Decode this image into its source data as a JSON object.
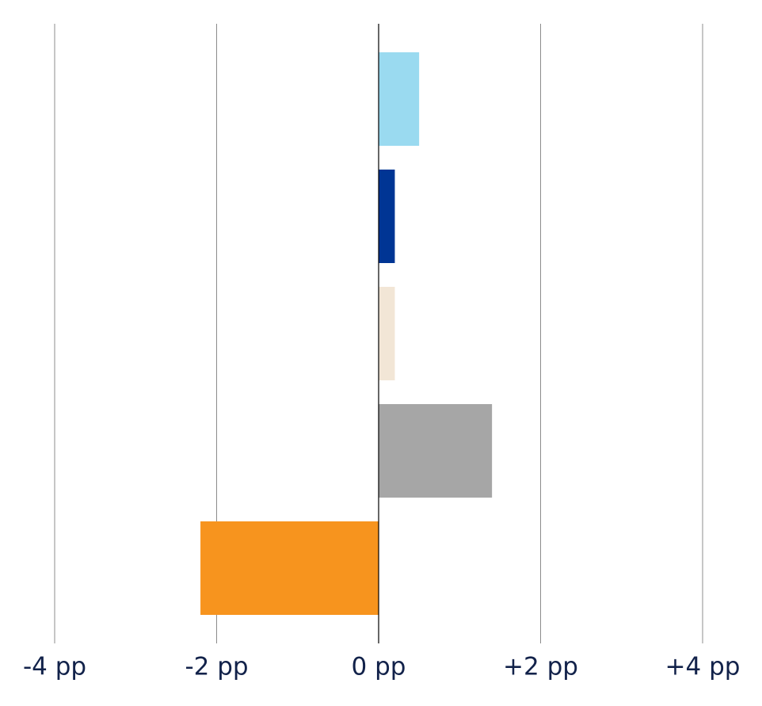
{
  "chart_data": {
    "type": "hbar",
    "categories": [
      null,
      null,
      null,
      null,
      null
    ],
    "values": [
      0.5,
      0.2,
      0.2,
      1.4,
      -2.2
    ],
    "colors": [
      "#9adaf0",
      "#003594",
      "#f2e6d6",
      "#a6a6a6",
      "#f7941e"
    ],
    "xlim": [
      -4,
      4
    ],
    "xticks": [
      {
        "value": -4,
        "label": "-4 pp"
      },
      {
        "value": -2,
        "label": "-2 pp"
      },
      {
        "value": 0,
        "label": "0 pp"
      },
      {
        "value": 2,
        "label": "+2 pp"
      },
      {
        "value": 4,
        "label": "+4 pp"
      }
    ],
    "grid": true
  }
}
